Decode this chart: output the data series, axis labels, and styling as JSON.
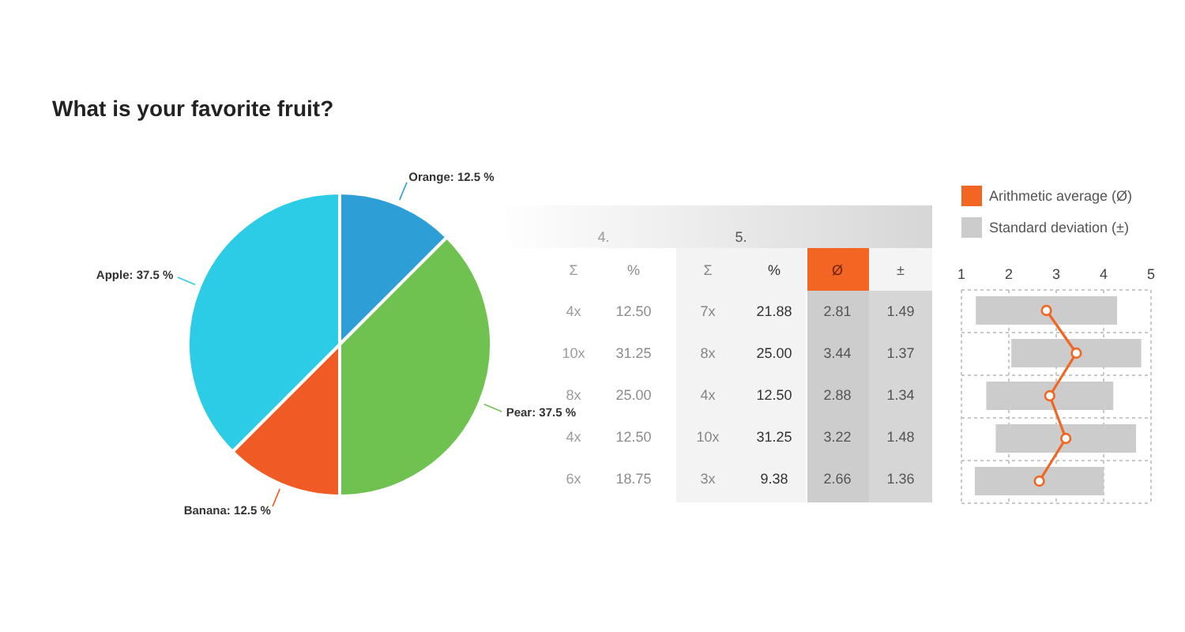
{
  "chart_data": [
    {
      "type": "pie",
      "title": "What is your favorite fruit?",
      "categories": [
        "Orange",
        "Pear",
        "Banana",
        "Apple"
      ],
      "values": [
        12.5,
        37.5,
        12.5,
        37.5
      ],
      "colors": [
        "#2e9ed6",
        "#6fc24f",
        "#f05a24",
        "#2ccbe6"
      ],
      "value_labels": [
        "12.5 %",
        "37.5 %",
        "12.5 %",
        "37.5 %"
      ]
    },
    {
      "type": "other",
      "cell_labels": [
        [
          "4.",
          null,
          "5.",
          null,
          null,
          null
        ],
        [
          "Σ",
          "%",
          "Σ",
          "%",
          "Ø",
          "±"
        ],
        [
          "4x",
          "12.50",
          "7x",
          "21.88",
          "2.81",
          "1.49"
        ],
        [
          "10x",
          "31.25",
          "8x",
          "25.00",
          "3.44",
          "1.37"
        ],
        [
          "8x",
          "25.00",
          "4x",
          "12.50",
          "2.88",
          "1.34"
        ],
        [
          "4x",
          "12.50",
          "10x",
          "31.25",
          "3.22",
          "1.48"
        ],
        [
          "6x",
          "18.75",
          "3x",
          "9.38",
          "2.66",
          "1.36"
        ]
      ]
    },
    {
      "type": "bar",
      "orientation": "horizontal",
      "categories": [
        null,
        null,
        null,
        null,
        null
      ],
      "series": [
        {
          "name": "Arithmetic average (Ø)",
          "type": "line",
          "color": "#f26522",
          "values": [
            2.81,
            3.44,
            2.88,
            3.22,
            2.66
          ]
        },
        {
          "name": "Standard deviation (±)",
          "type": "bar",
          "color": "#cccccc",
          "base": [
            1.32,
            2.07,
            1.54,
            1.74,
            1.3
          ],
          "values": [
            2.98,
            2.74,
            2.68,
            2.96,
            2.72
          ]
        }
      ],
      "xlim": [
        1,
        5
      ],
      "xticks": [
        1,
        2,
        3,
        4,
        5
      ],
      "grid": true,
      "legend": "top left",
      "marker": "circle",
      "tick_labels": "x"
    }
  ]
}
